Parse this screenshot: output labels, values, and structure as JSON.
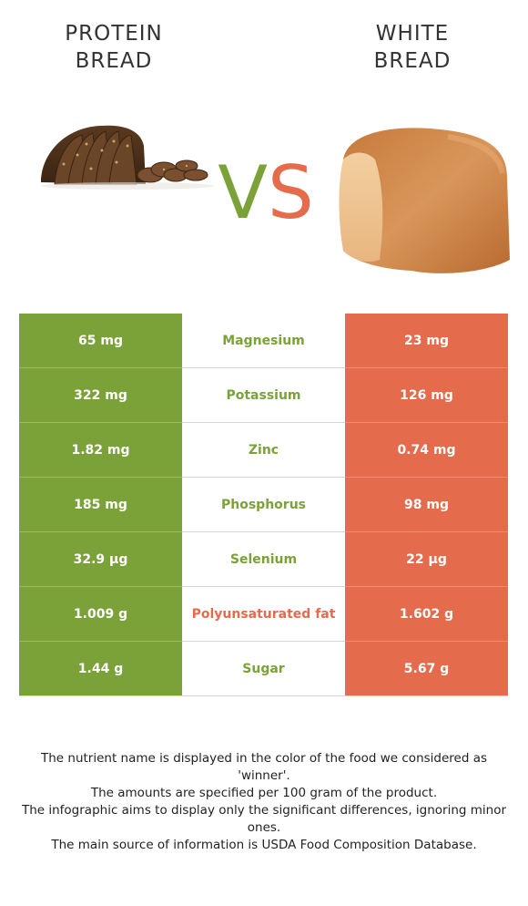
{
  "header": {
    "left_title": [
      "PROTEIN",
      "BREAD"
    ],
    "right_title": [
      "WHITE",
      "BREAD"
    ],
    "vs": {
      "v": "V",
      "s": "S"
    }
  },
  "colors": {
    "green": "#7ba239",
    "red": "#e46b4b"
  },
  "rows": [
    {
      "left": "65 mg",
      "nutrient": "Magnesium",
      "right": "23 mg",
      "winner": "green"
    },
    {
      "left": "322 mg",
      "nutrient": "Potassium",
      "right": "126 mg",
      "winner": "green"
    },
    {
      "left": "1.82 mg",
      "nutrient": "Zinc",
      "right": "0.74 mg",
      "winner": "green"
    },
    {
      "left": "185 mg",
      "nutrient": "Phosphorus",
      "right": "98 mg",
      "winner": "green"
    },
    {
      "left": "32.9 µg",
      "nutrient": "Selenium",
      "right": "22 µg",
      "winner": "green"
    },
    {
      "left": "1.009 g",
      "nutrient": "Polyunsaturated fat",
      "right": "1.602 g",
      "winner": "red"
    },
    {
      "left": "1.44 g",
      "nutrient": "Sugar",
      "right": "5.67 g",
      "winner": "green"
    }
  ],
  "footer": [
    "The nutrient name is displayed in the color of the food we considered as 'winner'.",
    "The amounts are specified per 100 gram of the product.",
    "The infographic aims to display only the significant differences, ignoring minor ones.",
    "The main source of information is USDA Food Composition Database."
  ]
}
